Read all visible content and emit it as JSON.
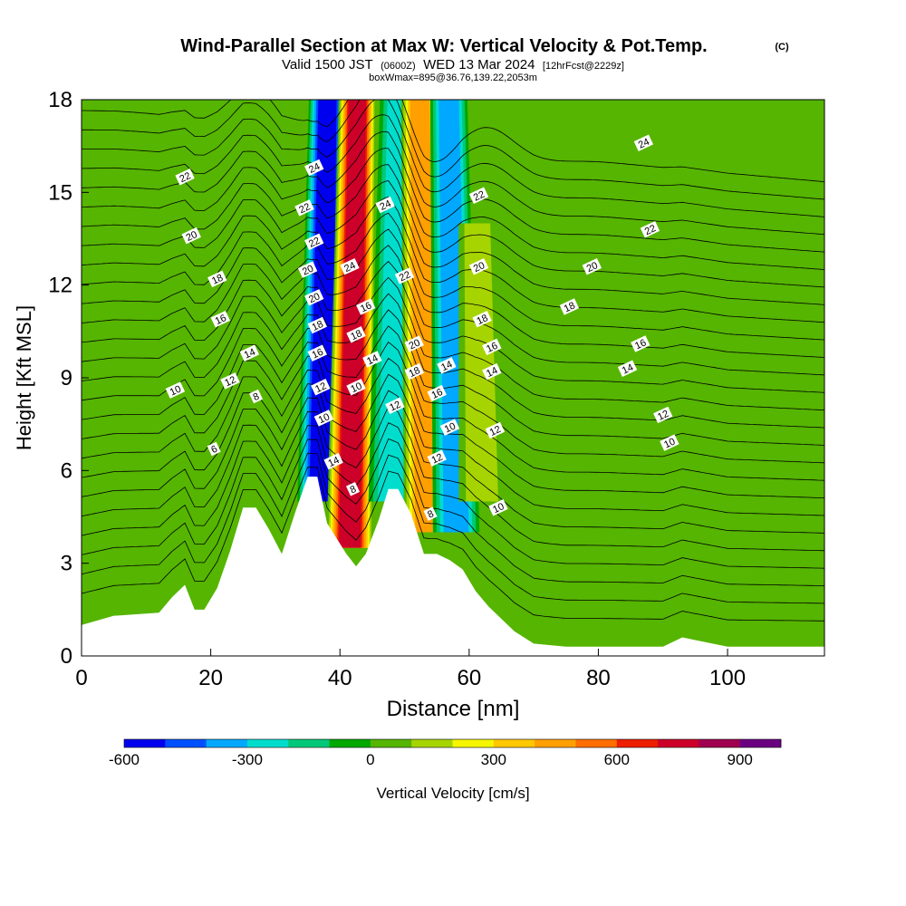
{
  "chart_data": {
    "type": "heatmap",
    "title": "Wind-Parallel Section at Max W: Vertical Velocity & Pot.Temp.",
    "title_mark": "(C)",
    "subtitle_parts": [
      "Valid 1500 JST",
      "(0600Z)",
      "WED 13 Mar 2024",
      "[12hrFcst@2229z]"
    ],
    "subtitle2": "boxWmax=895@36.76,139.22,2053m",
    "xlabel": "Distance [nm]",
    "ylabel": "Height [Kft MSL]",
    "xlim": [
      0,
      115
    ],
    "ylim": [
      0,
      18
    ],
    "x_ticks": [
      "0",
      "20",
      "40",
      "60",
      "80",
      "100"
    ],
    "y_ticks": [
      "0",
      "3",
      "6",
      "9",
      "12",
      "15",
      "18"
    ],
    "grid": false,
    "colorbar": {
      "label": "Vertical Velocity [cm/s]",
      "min": -600,
      "max": 1000,
      "step": 100,
      "tick_labels": [
        "-600",
        "-300",
        "0",
        "300",
        "600",
        "900"
      ],
      "colors": [
        "#0000ee",
        "#0050ff",
        "#00a8ff",
        "#00ddcc",
        "#00c878",
        "#00a800",
        "#55b500",
        "#a6d400",
        "#f6f600",
        "#ffc800",
        "#ff9f00",
        "#ff6e00",
        "#ee1e00",
        "#cc0028",
        "#a00050",
        "#6a0080"
      ]
    },
    "series": [
      {
        "name": "Vertical Velocity",
        "kind": "filled-contour",
        "units": "cm/s",
        "features": [
          {
            "x": 37,
            "z_range": [
              5,
              18
            ],
            "w": -600
          },
          {
            "x": 41.5,
            "z_range": [
              3.5,
              18
            ],
            "w": 800
          },
          {
            "x": 48,
            "z_range": [
              5,
              18
            ],
            "w": -300
          },
          {
            "x": 53.5,
            "z_range": [
              4,
              18
            ],
            "w": 550
          },
          {
            "x": 58,
            "z_range": [
              4,
              18
            ],
            "w": -450
          },
          {
            "x": 62,
            "z_range": [
              5,
              14
            ],
            "w": 250
          },
          {
            "x": 28,
            "z_range": [
              3,
              14
            ],
            "w": 150
          }
        ]
      },
      {
        "name": "Pot.Temp.",
        "kind": "contour-lines",
        "labels": [
          {
            "text": "22",
            "x": 16,
            "z": 15.5
          },
          {
            "text": "20",
            "x": 17,
            "z": 13.6
          },
          {
            "text": "18",
            "x": 21,
            "z": 12.2
          },
          {
            "text": "16",
            "x": 21.5,
            "z": 10.9
          },
          {
            "text": "14",
            "x": 26,
            "z": 9.8
          },
          {
            "text": "12",
            "x": 23,
            "z": 8.9
          },
          {
            "text": "10",
            "x": 14.5,
            "z": 8.6
          },
          {
            "text": "8",
            "x": 27,
            "z": 8.4
          },
          {
            "text": "6",
            "x": 20.5,
            "z": 6.7
          },
          {
            "text": "24",
            "x": 36,
            "z": 15.8
          },
          {
            "text": "22",
            "x": 34.5,
            "z": 14.5
          },
          {
            "text": "22",
            "x": 36,
            "z": 13.4
          },
          {
            "text": "20",
            "x": 35,
            "z": 12.5
          },
          {
            "text": "20",
            "x": 36,
            "z": 11.6
          },
          {
            "text": "18",
            "x": 36.5,
            "z": 10.7
          },
          {
            "text": "16",
            "x": 36.5,
            "z": 9.8
          },
          {
            "text": "12",
            "x": 37,
            "z": 8.7
          },
          {
            "text": "10",
            "x": 37.5,
            "z": 7.7
          },
          {
            "text": "14",
            "x": 39,
            "z": 6.3
          },
          {
            "text": "8",
            "x": 42,
            "z": 5.4
          },
          {
            "text": "24",
            "x": 41.5,
            "z": 12.6
          },
          {
            "text": "16",
            "x": 44,
            "z": 11.3
          },
          {
            "text": "18",
            "x": 42.5,
            "z": 10.4
          },
          {
            "text": "14",
            "x": 45,
            "z": 9.6
          },
          {
            "text": "10",
            "x": 42.5,
            "z": 8.7
          },
          {
            "text": "24",
            "x": 47,
            "z": 14.6
          },
          {
            "text": "22",
            "x": 50,
            "z": 12.3
          },
          {
            "text": "20",
            "x": 51.5,
            "z": 10.1
          },
          {
            "text": "18",
            "x": 51.5,
            "z": 9.2
          },
          {
            "text": "12",
            "x": 48.5,
            "z": 8.1
          },
          {
            "text": "14",
            "x": 56.5,
            "z": 9.4
          },
          {
            "text": "16",
            "x": 55,
            "z": 8.5
          },
          {
            "text": "10",
            "x": 57,
            "z": 7.4
          },
          {
            "text": "12",
            "x": 55,
            "z": 6.4
          },
          {
            "text": "8",
            "x": 54,
            "z": 4.6
          },
          {
            "text": "22",
            "x": 61.5,
            "z": 14.9
          },
          {
            "text": "20",
            "x": 61.5,
            "z": 12.6
          },
          {
            "text": "18",
            "x": 62,
            "z": 10.9
          },
          {
            "text": "16",
            "x": 63.5,
            "z": 10.0
          },
          {
            "text": "14",
            "x": 63.5,
            "z": 9.2
          },
          {
            "text": "12",
            "x": 64,
            "z": 7.3
          },
          {
            "text": "10",
            "x": 64.5,
            "z": 4.8
          },
          {
            "text": "24",
            "x": 87,
            "z": 16.6
          },
          {
            "text": "22",
            "x": 88,
            "z": 13.8
          },
          {
            "text": "20",
            "x": 79,
            "z": 12.6
          },
          {
            "text": "18",
            "x": 75.5,
            "z": 11.3
          },
          {
            "text": "16",
            "x": 86.5,
            "z": 10.1
          },
          {
            "text": "14",
            "x": 84.5,
            "z": 9.3
          },
          {
            "text": "12",
            "x": 90,
            "z": 7.8
          },
          {
            "text": "10",
            "x": 91,
            "z": 6.9
          }
        ]
      },
      {
        "name": "Terrain",
        "kind": "terrain",
        "units": "Kft",
        "x": [
          0,
          5,
          12,
          14,
          16,
          17.5,
          19,
          21,
          23,
          25,
          27,
          29,
          31,
          33,
          35,
          36.5,
          38,
          39.5,
          41,
          42.5,
          44,
          46,
          47.5,
          49,
          51,
          53,
          55,
          57,
          59,
          61,
          63,
          65,
          67,
          70,
          75,
          80,
          85,
          90,
          93,
          100,
          115
        ],
        "z": [
          1.0,
          1.3,
          1.4,
          1.9,
          2.3,
          1.5,
          1.5,
          2.2,
          3.4,
          4.8,
          4.8,
          4.1,
          3.3,
          4.6,
          5.8,
          5.8,
          4.3,
          3.8,
          3.3,
          2.9,
          3.3,
          4.4,
          5.4,
          5.4,
          4.6,
          3.3,
          3.3,
          3.1,
          2.8,
          2.1,
          1.6,
          1.2,
          0.8,
          0.4,
          0.3,
          0.3,
          0.3,
          0.3,
          0.6,
          0.3,
          0.3
        ]
      }
    ]
  }
}
